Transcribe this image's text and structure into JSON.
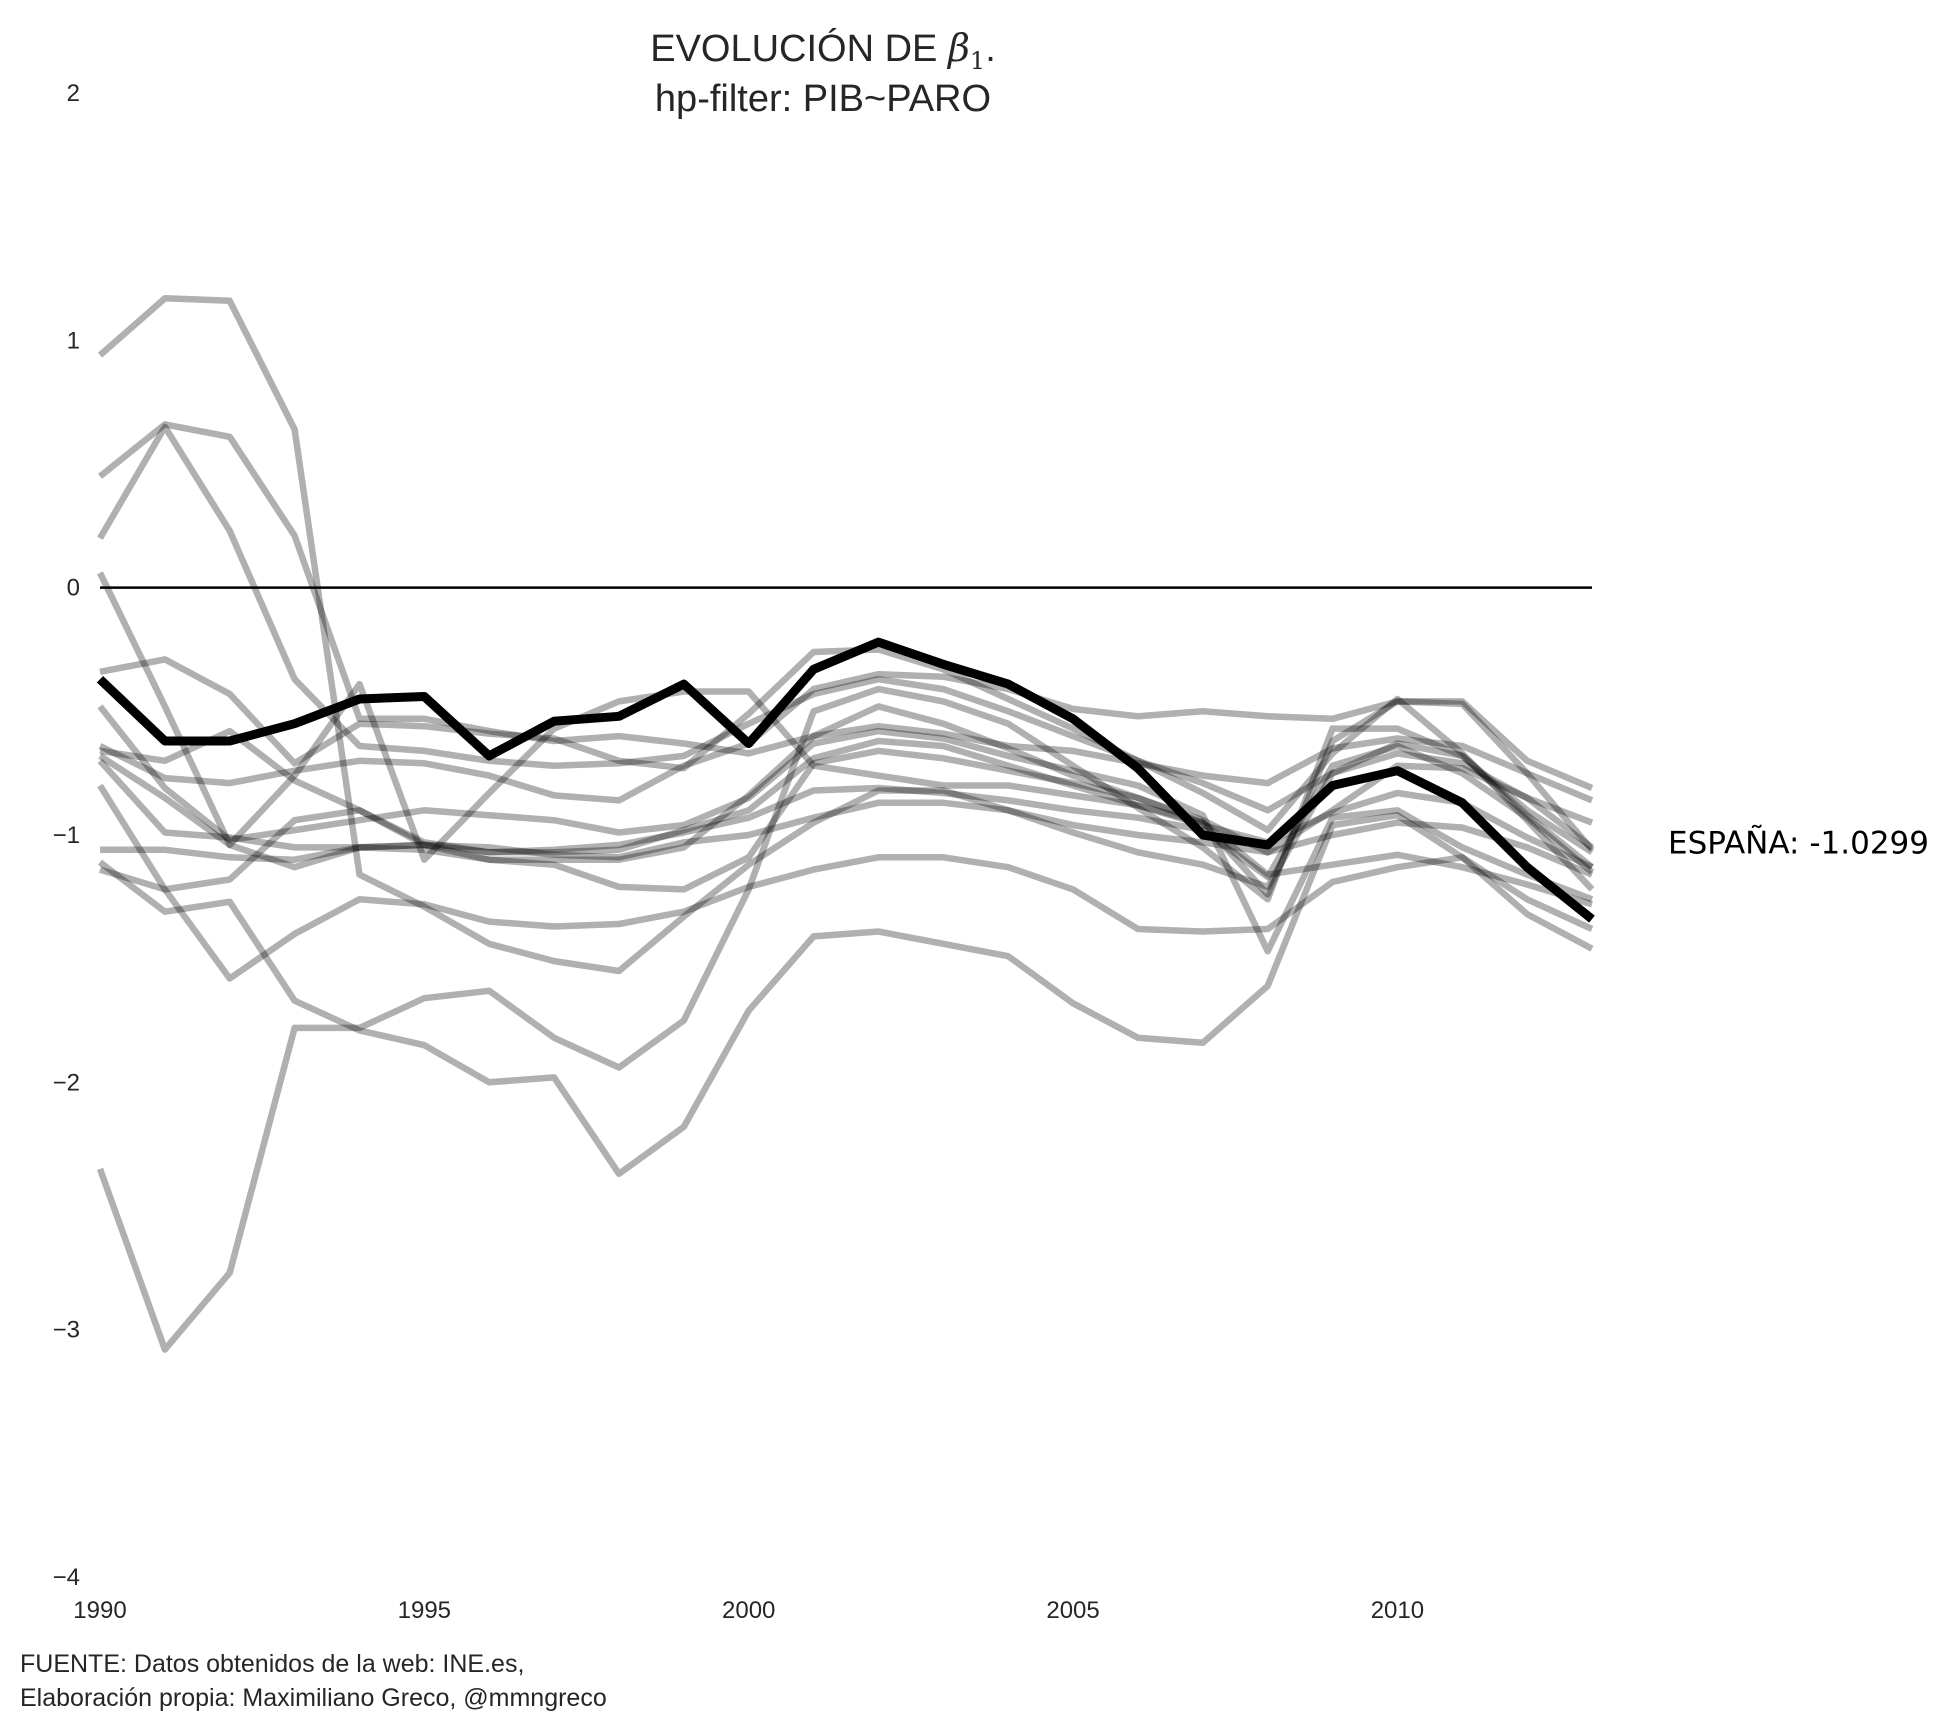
{
  "chart_data": {
    "type": "line",
    "title_line1_prefix": "EVOLUCIÓN DE ",
    "title_beta_symbol": "β",
    "title_beta_subscript": "1",
    "title_line1_suffix": ".",
    "title_line2": "hp-filter: PIB~PARO",
    "xlabel": "",
    "ylabel": "",
    "xlim": [
      1990,
      2013
    ],
    "ylim": [
      -4,
      2
    ],
    "x_ticks": [
      1990,
      1995,
      2000,
      2005,
      2010
    ],
    "y_ticks": [
      {
        "value": 2,
        "label": "2"
      },
      {
        "value": 1,
        "label": "1"
      },
      {
        "value": 0,
        "label": "0"
      },
      {
        "value": -1,
        "label": "−1"
      },
      {
        "value": -2,
        "label": "−2"
      },
      {
        "value": -3,
        "label": "−3"
      },
      {
        "value": -4,
        "label": "−4"
      }
    ],
    "reference_line_y": 0,
    "grid": false,
    "x": [
      1990,
      1991,
      1992,
      1993,
      1994,
      1995,
      1996,
      1997,
      1998,
      1999,
      2000,
      2001,
      2002,
      2003,
      2004,
      2005,
      2006,
      2007,
      2008,
      2009,
      2010,
      2011,
      2012,
      2013
    ],
    "highlight_series": {
      "annotation": "ESPAÑA: -1.0299",
      "color": "#000000",
      "values": [
        -0.37,
        -0.62,
        -0.62,
        -0.55,
        -0.45,
        -0.44,
        -0.68,
        -0.54,
        -0.52,
        -0.39,
        -0.63,
        -0.33,
        -0.22,
        -0.31,
        -0.39,
        -0.53,
        -0.73,
        -1.0,
        -1.04,
        -0.8,
        -0.74,
        -0.87,
        -1.13,
        -1.34
      ]
    },
    "background_series_color": "#aaaaaa",
    "background_series": [
      [
        0.94,
        1.17,
        1.16,
        0.64,
        -1.16,
        -1.29,
        -1.44,
        -1.51,
        -1.55,
        -1.33,
        -1.12,
        -0.95,
        -0.82,
        -0.82,
        -0.9,
        -0.99,
        -1.07,
        -1.12,
        -1.21,
        -0.75,
        -0.63,
        -0.68,
        -0.92,
        -1.13
      ],
      [
        0.45,
        0.66,
        0.61,
        0.21,
        -0.53,
        -0.53,
        -0.58,
        -0.62,
        -0.6,
        -0.63,
        -0.67,
        -0.6,
        -0.56,
        -0.59,
        -0.64,
        -0.66,
        -0.71,
        -0.76,
        -0.79,
        -0.65,
        -0.61,
        -0.64,
        -0.75,
        -0.86
      ],
      [
        0.2,
        0.65,
        0.23,
        -0.37,
        -0.64,
        -0.66,
        -0.7,
        -0.72,
        -0.71,
        -0.68,
        -0.55,
        -0.43,
        -0.37,
        -0.41,
        -0.5,
        -0.6,
        -0.7,
        -0.79,
        -0.9,
        -0.75,
        -0.67,
        -0.71,
        -0.85,
        -1.05
      ],
      [
        0.06,
        -0.48,
        -1.04,
        -0.76,
        -0.39,
        -1.1,
        -0.83,
        -0.57,
        -0.46,
        -0.42,
        -0.42,
        -0.72,
        -0.76,
        -0.8,
        -0.8,
        -0.84,
        -0.88,
        -0.95,
        -1.24,
        -0.62,
        -0.46,
        -0.47,
        -0.75,
        -1.06
      ],
      [
        -0.34,
        -0.29,
        -0.43,
        -0.71,
        -0.55,
        -0.56,
        -0.59,
        -0.61,
        -0.7,
        -0.73,
        -0.51,
        -0.26,
        -0.25,
        -0.33,
        -0.45,
        -0.57,
        -0.7,
        -0.83,
        -0.98,
        -0.67,
        -0.45,
        -0.67,
        -0.94,
        -1.22
      ],
      [
        -0.48,
        -0.81,
        -1.02,
        -0.98,
        -0.94,
        -0.9,
        -0.92,
        -0.94,
        -0.99,
        -0.96,
        -0.85,
        -0.63,
        -0.58,
        -0.61,
        -0.68,
        -0.74,
        -0.8,
        -0.92,
        -1.47,
        -0.93,
        -0.9,
        -1.05,
        -1.16,
        -1.26
      ],
      [
        -0.66,
        -0.7,
        -0.58,
        -0.78,
        -0.9,
        -1.04,
        -1.07,
        -1.07,
        -1.06,
        -0.98,
        -0.9,
        -0.69,
        -0.62,
        -0.64,
        -0.72,
        -0.8,
        -0.88,
        -0.96,
        -1.03,
        -0.91,
        -0.83,
        -0.87,
        -1.01,
        -1.13
      ],
      [
        -0.7,
        -0.99,
        -1.01,
        -1.05,
        -1.05,
        -1.04,
        -1.05,
        -1.08,
        -1.09,
        -1.03,
        -1.0,
        -0.93,
        -0.87,
        -0.87,
        -0.9,
        -0.96,
        -1.0,
        -1.03,
        -1.07,
        -1.0,
        -0.95,
        -0.97,
        -1.05,
        -1.16
      ],
      [
        -0.8,
        -1.22,
        -1.18,
        -0.94,
        -0.9,
        -1.03,
        -1.07,
        -1.06,
        -1.04,
        -0.99,
        -0.93,
        -0.82,
        -0.81,
        -0.83,
        -0.86,
        -0.9,
        -0.93,
        -0.98,
        -1.17,
        -0.72,
        -0.64,
        -0.75,
        -0.93,
        -1.15
      ],
      [
        -1.06,
        -1.06,
        -1.09,
        -1.1,
        -1.05,
        -1.04,
        -1.1,
        -1.1,
        -1.1,
        -1.05,
        -0.84,
        -0.6,
        -0.48,
        -0.55,
        -0.65,
        -0.76,
        -0.85,
        -0.94,
        -1.07,
        -0.9,
        -0.72,
        -0.73,
        -0.85,
        -0.95
      ],
      [
        -1.11,
        -1.31,
        -1.27,
        -1.67,
        -1.79,
        -1.85,
        -2.0,
        -1.98,
        -2.37,
        -2.18,
        -1.71,
        -1.41,
        -1.39,
        -1.44,
        -1.49,
        -1.68,
        -1.82,
        -1.84,
        -1.61,
        -0.96,
        -0.92,
        -1.09,
        -1.26,
        -1.38
      ],
      [
        -1.14,
        -1.22,
        -1.58,
        -1.4,
        -1.26,
        -1.28,
        -1.35,
        -1.37,
        -1.36,
        -1.31,
        -1.21,
        -1.14,
        -1.09,
        -1.09,
        -1.13,
        -1.22,
        -1.38,
        -1.39,
        -1.38,
        -1.19,
        -1.13,
        -1.09,
        -1.32,
        -1.46
      ],
      [
        -2.35,
        -3.08,
        -2.77,
        -1.78,
        -1.78,
        -1.66,
        -1.63,
        -1.82,
        -1.94,
        -1.75,
        -1.22,
        -0.5,
        -0.41,
        -0.46,
        -0.55,
        -0.72,
        -0.89,
        -1.05,
        -1.26,
        -0.57,
        -0.57,
        -0.68,
        -0.9,
        -1.07
      ],
      [
        -0.64,
        -0.77,
        -0.79,
        -0.74,
        -0.7,
        -0.71,
        -0.76,
        -0.84,
        -0.86,
        -0.72,
        -0.63,
        -0.41,
        -0.35,
        -0.36,
        -0.41,
        -0.49,
        -0.52,
        -0.5,
        -0.52,
        -0.53,
        -0.46,
        -0.46,
        -0.7,
        -0.81
      ],
      [
        -0.68,
        -0.85,
        -1.04,
        -1.13,
        -1.05,
        -1.06,
        -1.1,
        -1.12,
        -1.21,
        -1.22,
        -1.09,
        -0.71,
        -0.66,
        -0.69,
        -0.74,
        -0.79,
        -0.85,
        -0.95,
        -1.16,
        -1.12,
        -1.08,
        -1.13,
        -1.2,
        -1.28
      ]
    ],
    "footer_line1": "FUENTE: Datos obtenidos de la web: INE.es,",
    "footer_line2": "Elaboración propia: Maximiliano Greco, @mmngreco"
  }
}
